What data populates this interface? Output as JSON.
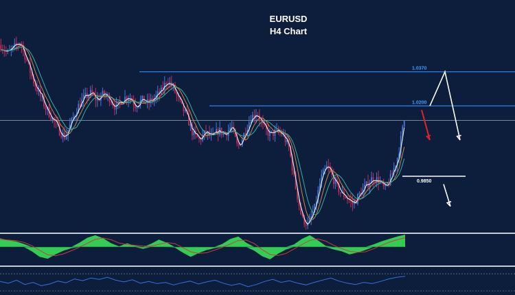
{
  "header": {
    "symbol": "EURUSD",
    "timeframe": "H4 Chart"
  },
  "colors": {
    "background": "#0d1e3d",
    "bull_candle": "#4a78d8",
    "bear_candle": "#c2305a",
    "level_line": "#2f7fe8",
    "level_label": "#3a9dff",
    "current_price_line": "#8a96a8",
    "support_line": "#ffffff",
    "bearish_arrow": "#e0242c",
    "scenario_arrow": "#ffffff",
    "oscillator_positive": "#33cc55",
    "oscillator_line": "#d23b3b",
    "rsi_line": "#3a6ee0",
    "panel_separator": "#c8ccd4"
  },
  "chart_data": [
    {
      "type": "candlestick",
      "title": "EURUSD",
      "subtitle": "H4 Chart",
      "ylim": [
        0.96,
        1.07
      ],
      "levels": [
        {
          "name": "resistance-1",
          "value": 1.037,
          "label": "1.0370"
        },
        {
          "name": "resistance-2",
          "value": 1.02,
          "label": "1.0200"
        },
        {
          "name": "support-1",
          "value": 0.985,
          "label": "0.9850"
        }
      ],
      "current_price": 1.0128,
      "trend_points": [
        1.0502,
        1.046,
        1.0488,
        1.052,
        1.043,
        1.033,
        1.026,
        1.019,
        1.014,
        1.008,
        1.0045,
        1.0118,
        1.0195,
        1.024,
        1.0262,
        1.023,
        1.0258,
        1.0238,
        1.019,
        1.0235,
        1.025,
        1.0205,
        1.023,
        1.0212,
        1.024,
        1.0268,
        1.033,
        1.0285,
        1.021,
        1.015,
        1.006,
        1.003,
        1.0068,
        1.004,
        1.0078,
        1.006,
        1.01,
        0.999,
        1.006,
        1.014,
        1.017,
        1.009,
        1.0058,
        1.007,
        1.006,
        0.999,
        0.98,
        0.964,
        0.9605,
        0.969,
        0.984,
        0.99,
        0.983,
        0.977,
        0.9745,
        0.971,
        0.976,
        0.98,
        0.984,
        0.983,
        0.978,
        0.985,
        0.995,
        1.013
      ],
      "scenarios": [
        {
          "name": "bearish-drop",
          "from": 1.018,
          "to": 1.003
        },
        {
          "name": "retest-then-drop",
          "path": [
            1.02,
            1.037,
            1.003
          ]
        },
        {
          "name": "break-support",
          "from": 0.981,
          "to": 0.97
        }
      ]
    },
    {
      "type": "histogram",
      "name": "momentum-oscillator",
      "values": [
        0.7,
        0.55,
        0.45,
        0.25,
        -0.35,
        -0.8,
        -0.95,
        -0.6,
        -0.3,
        -0.1,
        0.35,
        0.75,
        0.95,
        0.7,
        0.3,
        0.05,
        0.3,
        0.1,
        -0.15,
        0.25,
        0.6,
        0.35,
        -0.05,
        -0.45,
        -0.8,
        -0.5,
        -0.25,
        -0.1,
        0.25,
        0.65,
        0.85,
        0.35,
        -0.3,
        -0.75,
        -1.0,
        -0.55,
        -0.2,
        0.2,
        0.65,
        0.95,
        0.55,
        0.1,
        -0.2,
        -0.35,
        -0.6,
        -0.45,
        -0.25,
        0.2,
        0.45,
        0.65,
        0.85,
        1.0
      ],
      "ylim": [
        -1,
        1
      ]
    },
    {
      "type": "line",
      "name": "rsi",
      "values": [
        52,
        48,
        55,
        45,
        50,
        42,
        46,
        53,
        49,
        58,
        54,
        60,
        57,
        62,
        55,
        51,
        56,
        48,
        52,
        47,
        50,
        44,
        49,
        53,
        46,
        51,
        55,
        48,
        43,
        47,
        40,
        45,
        52,
        57,
        50,
        54,
        48,
        44,
        50,
        55,
        60,
        53,
        48,
        45,
        50,
        47,
        52,
        58,
        62,
        64
      ],
      "ylim": [
        30,
        75
      ],
      "guides": [
        70,
        30
      ]
    }
  ]
}
